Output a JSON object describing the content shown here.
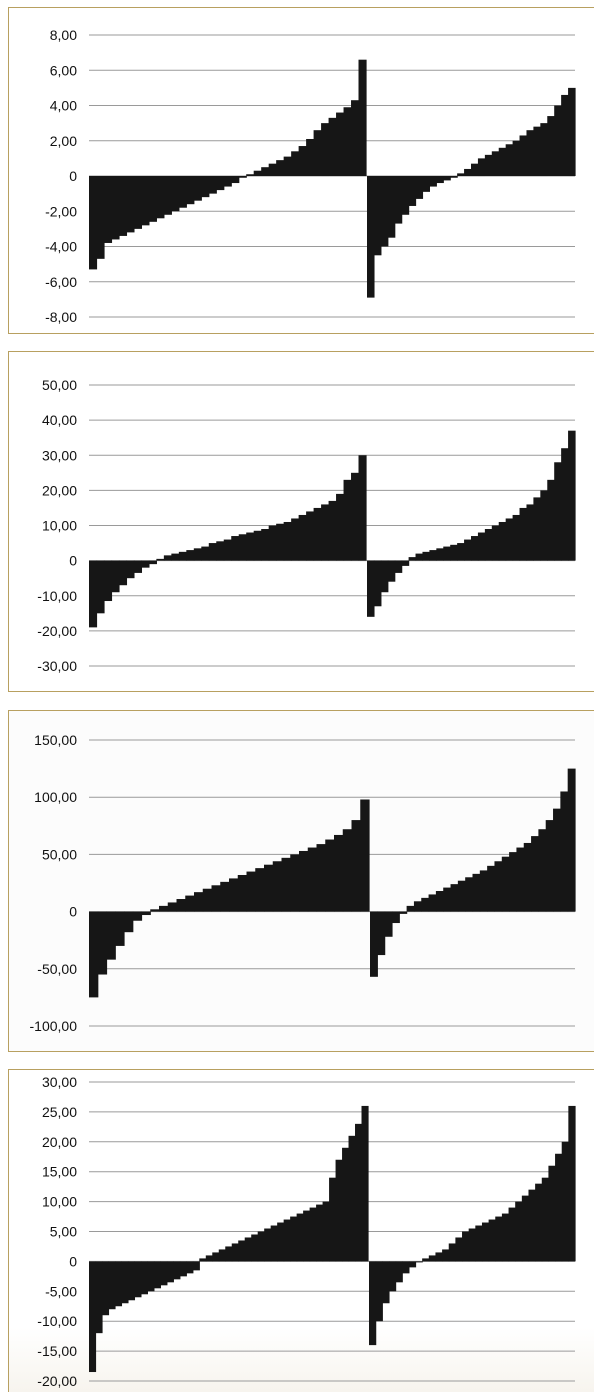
{
  "chart_data": [
    {
      "type": "bar",
      "yticks": [
        "8,00",
        "6,00",
        "4,00",
        "2,00",
        "0",
        "-2,00",
        "-4,00",
        "-6,00",
        "-8,00"
      ],
      "ylim": [
        -8,
        8
      ],
      "grid": true,
      "series": [
        {
          "values": [
            -5.3,
            -4.7,
            -3.8,
            -3.6,
            -3.4,
            -3.2,
            -3.0,
            -2.8,
            -2.6,
            -2.4,
            -2.2,
            -2.0,
            -1.8,
            -1.6,
            -1.4,
            -1.2,
            -1.0,
            -0.8,
            -0.6,
            -0.4,
            -0.1,
            0.1,
            0.3,
            0.5,
            0.7,
            0.9,
            1.1,
            1.4,
            1.7,
            2.1,
            2.6,
            3.0,
            3.3,
            3.6,
            3.9,
            4.3,
            6.6
          ]
        },
        {
          "values": [
            -6.9,
            -4.5,
            -4.0,
            -3.5,
            -2.7,
            -2.2,
            -1.7,
            -1.3,
            -0.9,
            -0.6,
            -0.4,
            -0.25,
            -0.1,
            0.15,
            0.4,
            0.7,
            1.0,
            1.2,
            1.4,
            1.6,
            1.8,
            2.0,
            2.3,
            2.6,
            2.8,
            3.0,
            3.4,
            4.0,
            4.6,
            5.0
          ]
        }
      ]
    },
    {
      "type": "bar",
      "yticks": [
        "50,00",
        "40,00",
        "30,00",
        "20,00",
        "10,00",
        "0",
        "-10,00",
        "-20,00",
        "-30,00"
      ],
      "ylim": [
        -30,
        50
      ],
      "grid": true,
      "series": [
        {
          "values": [
            -19,
            -15,
            -11.5,
            -9,
            -7,
            -5,
            -3.5,
            -2,
            -1,
            0.5,
            1.5,
            2,
            2.5,
            3,
            3.5,
            4,
            5,
            5.5,
            6,
            7,
            7.5,
            8,
            8.5,
            9,
            10,
            10.5,
            11,
            12,
            13,
            14,
            15,
            16,
            17,
            19,
            23,
            25,
            30
          ]
        },
        {
          "values": [
            -16,
            -13,
            -9,
            -6,
            -3.5,
            -1.5,
            1,
            2,
            2.5,
            3,
            3.5,
            4,
            4.5,
            5,
            6,
            7,
            8,
            9,
            10,
            11,
            12,
            13,
            15,
            16,
            18,
            20,
            23,
            28,
            32,
            37
          ]
        }
      ]
    },
    {
      "type": "bar",
      "yticks": [
        "150,00",
        "100,00",
        "50,00",
        "0",
        "-50,00",
        "-100,00"
      ],
      "ylim": [
        -100,
        150
      ],
      "grid": true,
      "series": [
        {
          "values": [
            -75,
            -55,
            -42,
            -30,
            -18,
            -8,
            -3,
            2,
            5,
            8,
            11,
            14,
            17,
            20,
            23,
            26,
            29,
            32,
            35,
            38,
            41,
            44,
            47,
            50,
            53,
            56,
            59,
            63,
            67,
            72,
            80,
            98
          ]
        },
        {
          "values": [
            -57,
            -38,
            -22,
            -10,
            -2,
            5,
            9,
            12,
            15,
            18,
            21,
            24,
            27,
            30,
            33,
            36,
            40,
            44,
            48,
            52,
            56,
            60,
            66,
            72,
            80,
            90,
            105,
            125
          ]
        }
      ]
    },
    {
      "type": "bar",
      "yticks": [
        "30,00",
        "25,00",
        "20,00",
        "15,00",
        "10,00",
        "5,00",
        "0",
        "-5,00",
        "-10,00",
        "-15,00",
        "-20,00"
      ],
      "ylim": [
        -20,
        30
      ],
      "grid": true,
      "series": [
        {
          "values": [
            -18.5,
            -12,
            -9,
            -8,
            -7.5,
            -7,
            -6.5,
            -6,
            -5.5,
            -5,
            -4.5,
            -4,
            -3.5,
            -3,
            -2.5,
            -2,
            -1.5,
            0.5,
            1,
            1.5,
            2,
            2.5,
            3,
            3.5,
            4,
            4.5,
            5,
            5.5,
            6,
            6.5,
            7,
            7.5,
            8,
            8.5,
            9,
            9.5,
            10,
            14,
            17,
            19,
            21,
            23,
            26
          ]
        },
        {
          "values": [
            -14,
            -10,
            -7,
            -5,
            -3.5,
            -2,
            -1,
            0,
            0.5,
            1,
            1.5,
            2,
            3,
            4,
            5,
            5.5,
            6,
            6.5,
            7,
            7.5,
            8,
            9,
            10,
            11,
            12,
            13,
            14,
            16,
            18,
            20,
            26
          ]
        }
      ]
    }
  ]
}
